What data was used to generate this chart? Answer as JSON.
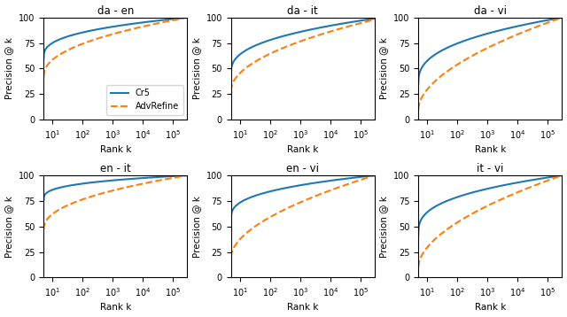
{
  "subplots": [
    {
      "title": "da - en",
      "cr5_start": 60,
      "cr5_end": 100,
      "adv_start": 42,
      "adv_end": 100,
      "cr5_shape": 0.35,
      "adv_shape": 0.45
    },
    {
      "title": "da - it",
      "cr5_start": 45,
      "cr5_end": 99,
      "adv_start": 28,
      "adv_end": 98,
      "cr5_shape": 0.38,
      "adv_shape": 0.5
    },
    {
      "title": "da - vi",
      "cr5_start": 35,
      "cr5_end": 100,
      "adv_start": 10,
      "adv_end": 100,
      "cr5_shape": 0.38,
      "adv_shape": 0.55
    },
    {
      "title": "en - it",
      "cr5_start": 75,
      "cr5_end": 100,
      "adv_start": 47,
      "adv_end": 100,
      "cr5_shape": 0.3,
      "adv_shape": 0.45
    },
    {
      "title": "en - vi",
      "cr5_start": 57,
      "cr5_end": 100,
      "adv_start": 20,
      "adv_end": 100,
      "cr5_shape": 0.35,
      "adv_shape": 0.55
    },
    {
      "title": "it - vi",
      "cr5_start": 42,
      "cr5_end": 100,
      "adv_start": 10,
      "adv_end": 100,
      "cr5_shape": 0.35,
      "adv_shape": 0.55
    }
  ],
  "cr5_color": "#1f77b4",
  "adv_color": "#ff7f0e",
  "cr5_label": "Cr5",
  "adv_label": "AdvRefine",
  "xlabel": "Rank k",
  "ylabel": "Precision @ k",
  "xmin": 5,
  "xmax": 300000,
  "ymin": 0,
  "ymax": 100,
  "legend_subplot": 0,
  "nrows": 2,
  "ncols": 3
}
